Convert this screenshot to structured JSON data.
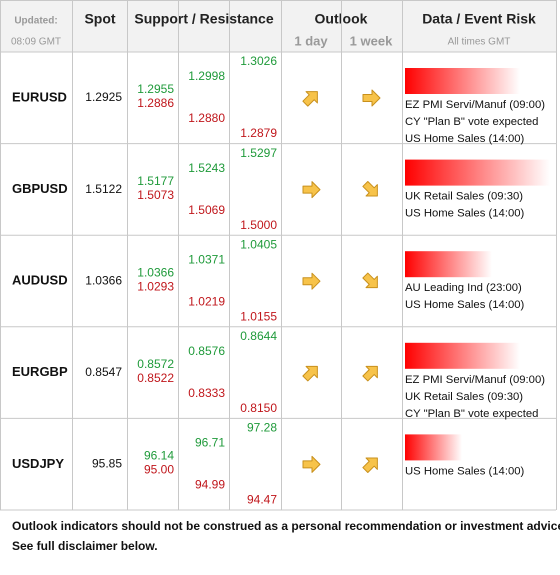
{
  "header": {
    "updated_label": "Updated:",
    "updated_time": "08:09 GMT",
    "spot": "Spot",
    "support_resistance": "Support / Resistance",
    "outlook": "Outlook",
    "outlook_1day": "1 day",
    "outlook_1week": "1 week",
    "data_event_risk": "Data / Event Risk",
    "times_note": "All times GMT"
  },
  "rows": [
    {
      "pair": "EURUSD",
      "spot": "1.2925",
      "resistance": [
        "1.2955",
        "1.2998",
        "1.3026"
      ],
      "support": [
        "1.2886",
        "1.2880",
        "1.2879"
      ],
      "events": [
        "EZ PMI Servi/Manuf (09:00)",
        "CY \"Plan B\" vote expected",
        "US Home Sales (14:00)"
      ]
    },
    {
      "pair": "GBPUSD",
      "spot": "1.5122",
      "resistance": [
        "1.5177",
        "1.5243",
        "1.5297"
      ],
      "support": [
        "1.5073",
        "1.5069",
        "1.5000"
      ],
      "events": [
        "UK Retail Sales (09:30)",
        "US Home Sales (14:00)"
      ]
    },
    {
      "pair": "AUDUSD",
      "spot": "1.0366",
      "resistance": [
        "1.0366",
        "1.0371",
        "1.0405"
      ],
      "support": [
        "1.0293",
        "1.0219",
        "1.0155"
      ],
      "events": [
        "AU Leading Ind (23:00)",
        "US Home Sales (14:00)"
      ]
    },
    {
      "pair": "EURGBP",
      "spot": "0.8547",
      "resistance": [
        "0.8572",
        "0.8576",
        "0.8644"
      ],
      "support": [
        "0.8522",
        "0.8333",
        "0.8150"
      ],
      "events": [
        "EZ PMI Servi/Manuf (09:00)",
        "UK Retail Sales (09:30)",
        "CY \"Plan B\" vote expected"
      ]
    },
    {
      "pair": "USDJPY",
      "spot": "95.85",
      "resistance": [
        "96.14",
        "96.71",
        "97.28"
      ],
      "support": [
        "95.00",
        "94.99",
        "94.47"
      ],
      "events": [
        "US Home Sales (14:00)"
      ]
    }
  ],
  "footer": [
    "Outlook indicators should not be construed as a personal recommendation or investment advice.",
    "See full disclaimer below."
  ]
}
